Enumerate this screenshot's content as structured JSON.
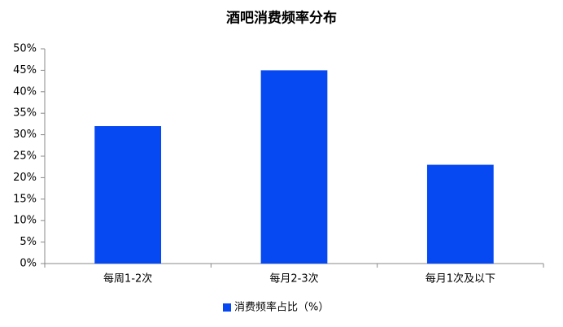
{
  "chart_data": {
    "type": "bar",
    "title": "酒吧消费频率分布",
    "categories": [
      "每周1-2次",
      "每月2-3次",
      "每月1次及以下"
    ],
    "series": [
      {
        "name": "消费频率占比（%）",
        "color": "#0648f2",
        "values": [
          32,
          45,
          23
        ]
      }
    ],
    "ylim": [
      0,
      50
    ],
    "yticks": [
      {
        "value": 0,
        "label": "0%"
      },
      {
        "value": 5,
        "label": "5%"
      },
      {
        "value": 10,
        "label": "10%"
      },
      {
        "value": 15,
        "label": "15%"
      },
      {
        "value": 20,
        "label": "20%"
      },
      {
        "value": 25,
        "label": "25%"
      },
      {
        "value": 30,
        "label": "30%"
      },
      {
        "value": 35,
        "label": "35%"
      },
      {
        "value": 40,
        "label": "40%"
      },
      {
        "value": 45,
        "label": "45%"
      },
      {
        "value": 50,
        "label": "50%"
      }
    ],
    "grid": false,
    "legend": "bottom"
  }
}
